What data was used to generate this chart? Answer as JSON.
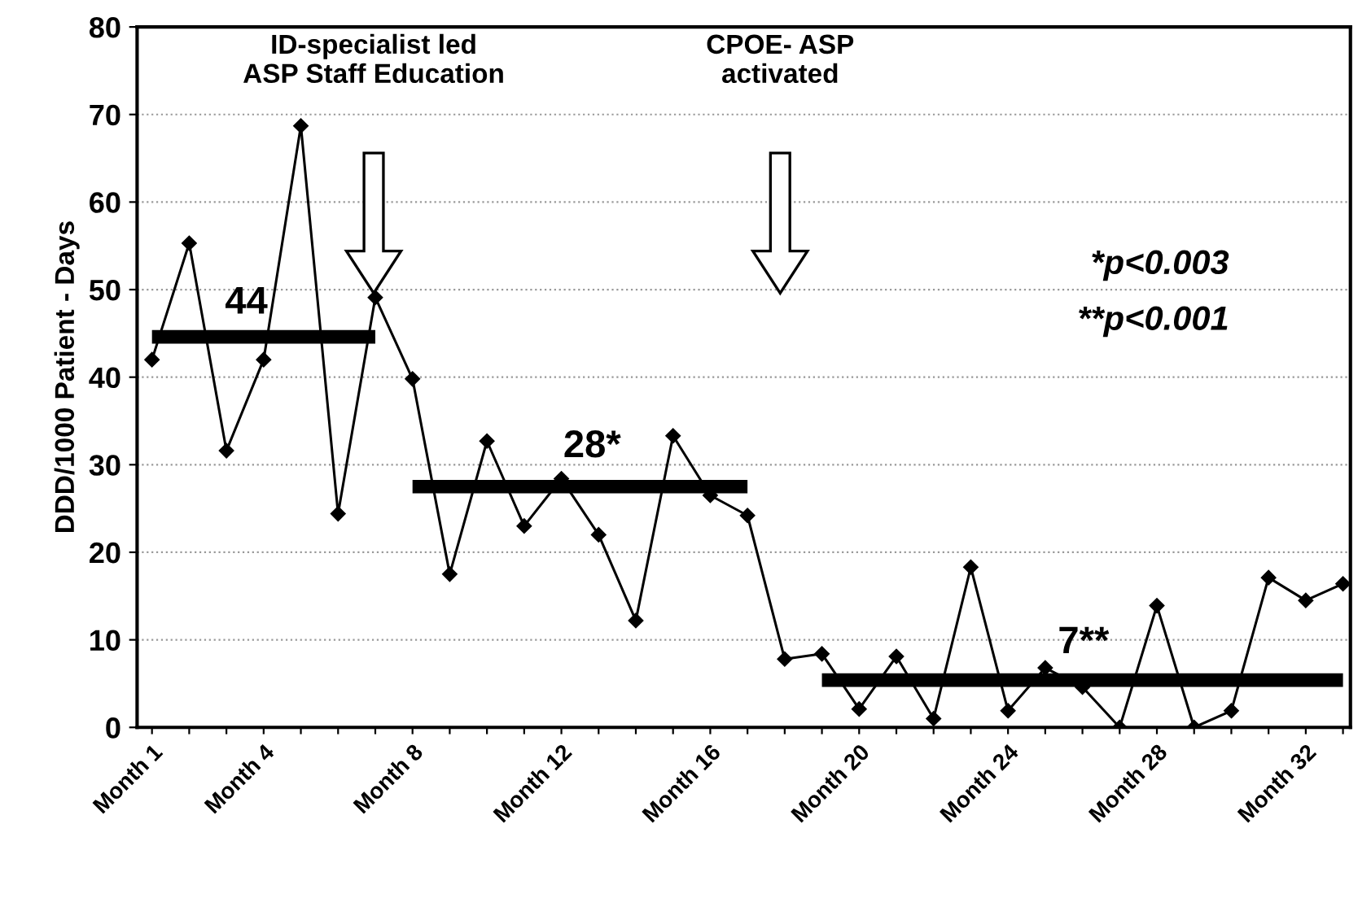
{
  "chart_data": {
    "type": "line",
    "ylabel": "DDD/1000 Patient - Days",
    "categories": [
      "Month 1",
      null,
      null,
      "Month 4",
      null,
      null,
      null,
      "Month 8",
      null,
      null,
      null,
      "Month 12",
      null,
      null,
      null,
      "Month 16",
      null,
      null,
      null,
      "Month 20",
      null,
      null,
      null,
      "Month 24",
      null,
      null,
      null,
      "Month 28",
      null,
      null,
      null,
      "Month 32",
      null
    ],
    "series": [
      {
        "color": "#000000",
        "marker": "diamond",
        "values": [
          42,
          55.3,
          31.6,
          42,
          68.7,
          24.4,
          49.1,
          39.8,
          17.5,
          32.7,
          23,
          28.4,
          22,
          12.2,
          33.3,
          26.5,
          24.2,
          7.8,
          8.4,
          2.1,
          8.1,
          1,
          18.3,
          1.9,
          6.8,
          4.6,
          0,
          13.9,
          0,
          1.9,
          17.1,
          14.5,
          16.4
        ]
      },
      {
        "color": "#000000",
        "marker": "none",
        "values": [
          44.6,
          44.6,
          44.6,
          44.6,
          44.6,
          44.6,
          44.6,
          null,
          null,
          null,
          null,
          null,
          null,
          null,
          null,
          null,
          null,
          null,
          null,
          null,
          null,
          null,
          null,
          null,
          null,
          null,
          null,
          null,
          null,
          null,
          null,
          null,
          null
        ]
      },
      {
        "color": "#000000",
        "marker": "none",
        "values": [
          null,
          null,
          null,
          null,
          null,
          null,
          null,
          27.5,
          27.5,
          27.5,
          27.5,
          27.5,
          27.5,
          27.5,
          27.5,
          27.5,
          27.5,
          null,
          null,
          null,
          null,
          null,
          null,
          null,
          null,
          null,
          null,
          null,
          null,
          null,
          null,
          null,
          null
        ]
      },
      {
        "color": "#000000",
        "marker": "none",
        "values": [
          null,
          null,
          null,
          null,
          null,
          null,
          null,
          null,
          null,
          null,
          null,
          null,
          null,
          null,
          null,
          null,
          null,
          null,
          5.4,
          5.4,
          5.4,
          5.4,
          5.4,
          5.4,
          5.4,
          5.4,
          5.4,
          5.4,
          5.4,
          5.4,
          5.4,
          5.4,
          5.4
        ]
      }
    ],
    "annotations": [
      "44",
      "28*",
      "7**",
      "ID-specialist led\nASP Staff Education",
      "CPOE- ASP\nactivated",
      "*p<0.003",
      "**p<0.001"
    ],
    "ylim": [
      0,
      80
    ],
    "yticks": [
      0,
      10,
      20,
      30,
      40,
      50,
      60,
      70,
      80
    ],
    "grid": "y"
  }
}
